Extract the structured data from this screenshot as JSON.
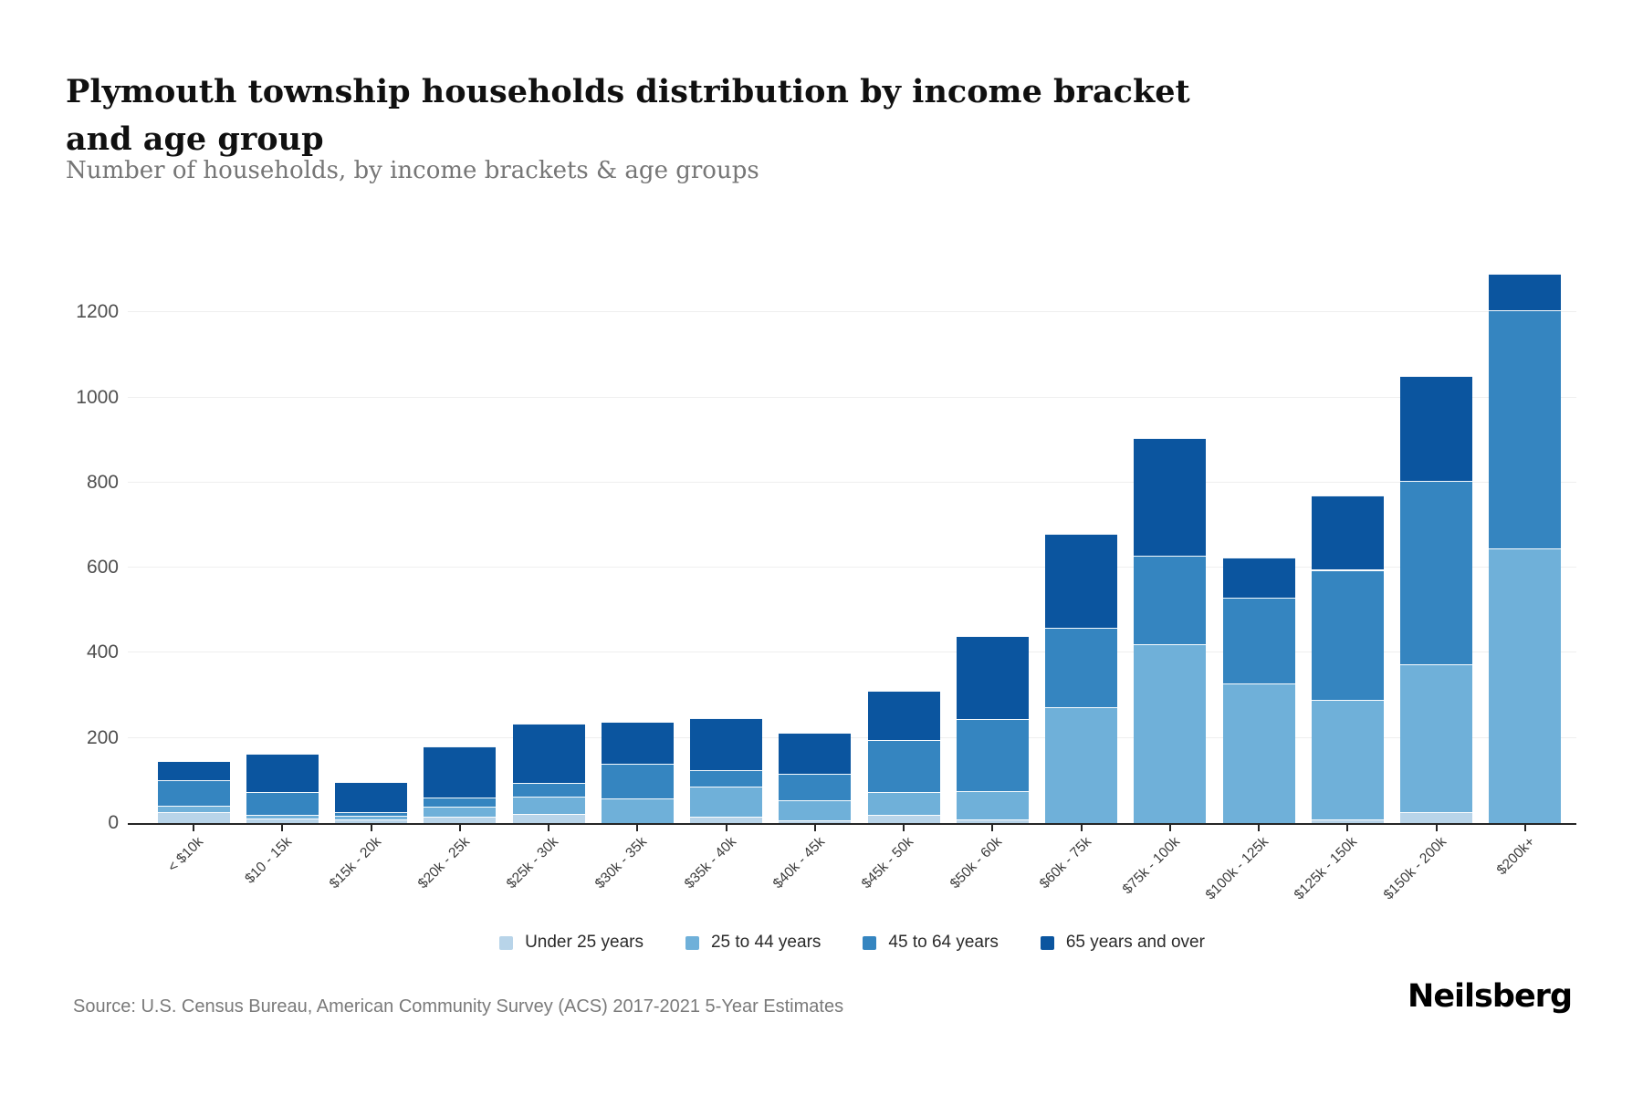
{
  "chart_data": {
    "type": "bar",
    "stacked": true,
    "title": "Plymouth township households distribution by income bracket and age group",
    "subtitle": "Number of households, by income brackets & age groups",
    "categories": [
      "< $10k",
      "$10 - 15k",
      "$15k - 20k",
      "$20k - 25k",
      "$25k - 30k",
      "$30k - 35k",
      "$35k - 40k",
      "$40k - 45k",
      "$45k - 50k",
      "$50k - 60k",
      "$60k - 75k",
      "$75k - 100k",
      "$100k - 125k",
      "$125k - 150k",
      "$150k - 200k",
      "$200k+"
    ],
    "series": [
      {
        "name": "Under 25 years",
        "color": "#b8d4e9",
        "values": [
          25,
          10,
          8,
          15,
          22,
          0,
          15,
          6,
          20,
          8,
          0,
          0,
          0,
          8,
          25,
          0
        ]
      },
      {
        "name": "25 to 44 years",
        "color": "#6fb0d9",
        "values": [
          15,
          10,
          9,
          24,
          40,
          58,
          71,
          47,
          52,
          67,
          272,
          420,
          328,
          282,
          348,
          645
        ]
      },
      {
        "name": "45 to 64 years",
        "color": "#3585c0",
        "values": [
          60,
          52,
          9,
          21,
          32,
          82,
          39,
          62,
          124,
          170,
          187,
          208,
          202,
          305,
          432,
          560
        ]
      },
      {
        "name": "65 years and over",
        "color": "#0b559f",
        "values": [
          45,
          90,
          70,
          120,
          140,
          97,
          122,
          97,
          116,
          195,
          221,
          277,
          95,
          175,
          245,
          85
        ]
      }
    ],
    "totals": [
      145,
      162,
      96,
      180,
      234,
      237,
      247,
      212,
      312,
      440,
      680,
      905,
      625,
      770,
      1050,
      1290
    ],
    "ylim": [
      0,
      1355
    ],
    "yticks": [
      0,
      200,
      400,
      600,
      800,
      1000,
      1200
    ],
    "xlabel": "",
    "ylabel": "",
    "grid": true,
    "legend_position": "bottom"
  },
  "footer": {
    "source": "Source: U.S. Census Bureau, American Community Survey (ACS) 2017-2021 5-Year Estimates",
    "brand": "Neilsberg"
  }
}
